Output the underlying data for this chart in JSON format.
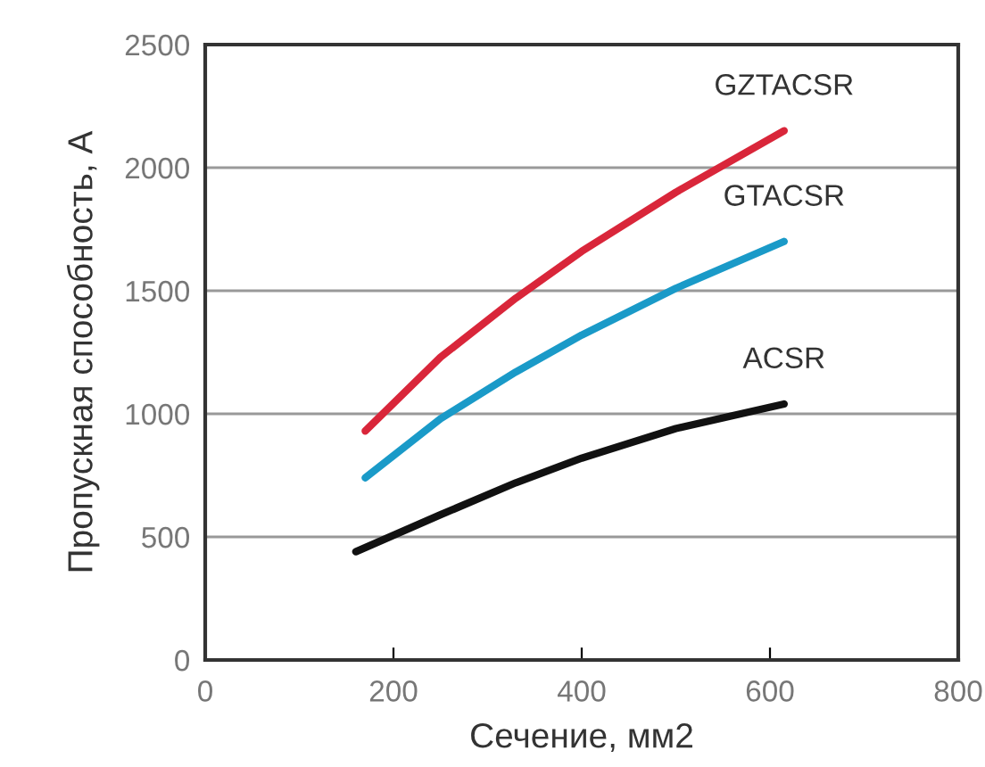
{
  "chart_data": {
    "type": "line",
    "xlabel": "Сечение, мм2",
    "ylabel": "Пропускная способность, А",
    "xlim": [
      0,
      800
    ],
    "ylim": [
      0,
      2500
    ],
    "xticks": [
      0,
      200,
      400,
      600,
      800
    ],
    "yticks": [
      0,
      500,
      1000,
      1500,
      2000,
      2500
    ],
    "grid": "y",
    "legend": false,
    "marker": "none",
    "line_style": "solid",
    "series": [
      {
        "name": "GZTACSR",
        "color": "#d9263a",
        "x": [
          170,
          250,
          330,
          400,
          500,
          615
        ],
        "values": [
          930,
          1230,
          1470,
          1660,
          1900,
          2150
        ]
      },
      {
        "name": "GTACSR",
        "color": "#1a9ac8",
        "x": [
          170,
          250,
          330,
          400,
          500,
          615
        ],
        "values": [
          740,
          980,
          1170,
          1320,
          1510,
          1700
        ]
      },
      {
        "name": "ACSR",
        "color": "#111111",
        "x": [
          160,
          250,
          330,
          400,
          500,
          615
        ],
        "values": [
          440,
          590,
          720,
          820,
          940,
          1040
        ]
      }
    ]
  }
}
